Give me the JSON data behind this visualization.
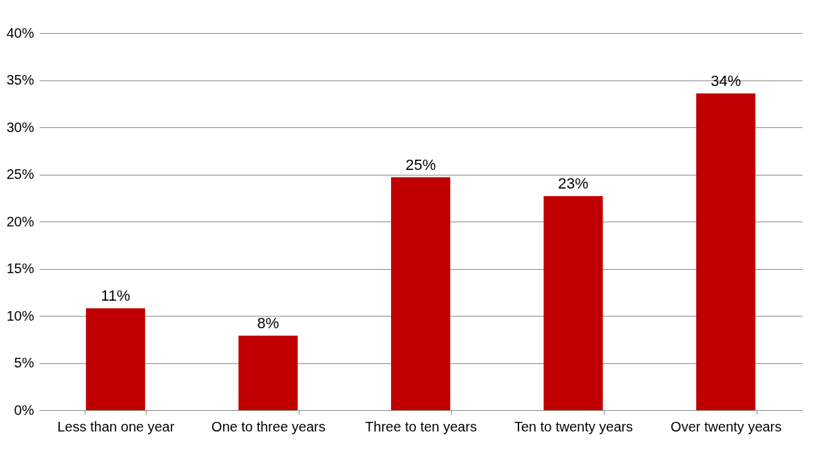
{
  "chart_data": {
    "type": "bar",
    "categories": [
      "Less than one year",
      "One to three years",
      "Three to ten years",
      "Ten to twenty years",
      "Over twenty years"
    ],
    "values": [
      10.8,
      7.9,
      24.7,
      22.7,
      33.6
    ],
    "value_labels": [
      "11%",
      "8%",
      "25%",
      "23%",
      "34%"
    ],
    "color": "#c00000",
    "ylim": [
      0,
      40
    ],
    "yticks": [
      {
        "value": 0,
        "label": "0%"
      },
      {
        "value": 5,
        "label": "5%"
      },
      {
        "value": 10,
        "label": "10%"
      },
      {
        "value": 15,
        "label": "15%"
      },
      {
        "value": 20,
        "label": "20%"
      },
      {
        "value": 25,
        "label": "25%"
      },
      {
        "value": 30,
        "label": "30%"
      },
      {
        "value": 35,
        "label": "35%"
      },
      {
        "value": 40,
        "label": "40%"
      }
    ],
    "grid": "y"
  }
}
